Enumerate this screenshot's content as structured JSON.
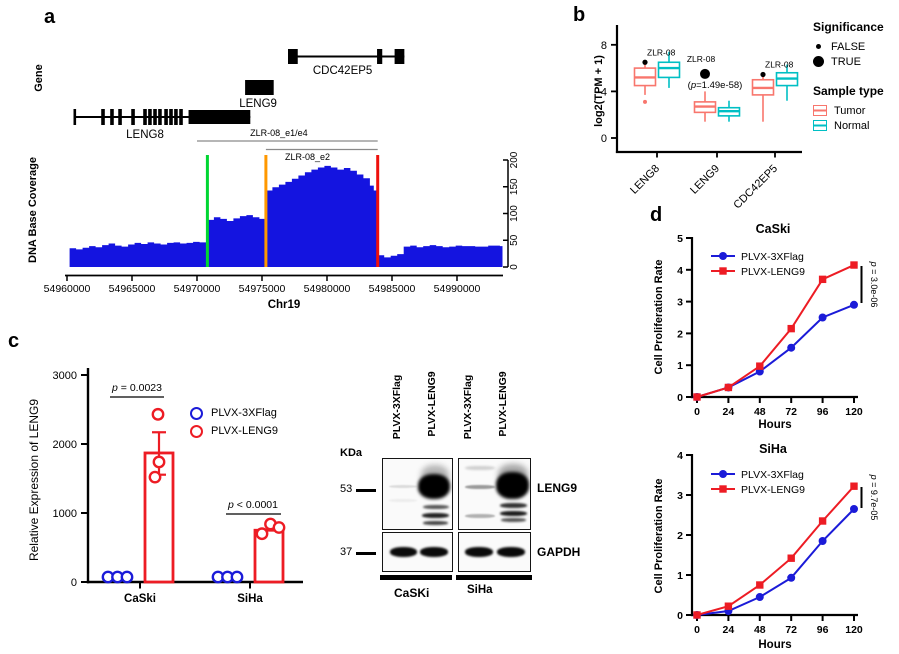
{
  "figure": {
    "panels": {
      "a": "a",
      "b": "b",
      "c": "c",
      "d": "d"
    }
  },
  "chart_data": [
    {
      "id": "coverage",
      "panel": "a",
      "type": "area",
      "xlabel": "Chr19",
      "ylabel": "DNA Base Coverage",
      "track_label": "Gene",
      "x_ticks": [
        54960000,
        54965000,
        54970000,
        54975000,
        54980000,
        54985000,
        54990000
      ],
      "y_ticks": [
        0,
        50,
        100,
        150,
        200
      ],
      "xlim": [
        54959800,
        54993500
      ],
      "ylim": [
        0,
        200
      ],
      "fill_color": "#1414e0",
      "genes": [
        {
          "name": "LENG8",
          "line": [
            54960600,
            54974100
          ],
          "start_cap": 54960600,
          "exons": [
            54962770,
            54963460,
            54964080,
            54965080,
            54966000,
            54966380,
            54966770,
            54967150,
            54967620,
            54968000,
            54968380,
            54968770
          ],
          "block": [
            54969350,
            54974100
          ],
          "label_bp": 54966000
        },
        {
          "name": "LENG9",
          "block": [
            54973700,
            54975900
          ],
          "label_bp": 54974700
        },
        {
          "name": "CDC42EP5",
          "line": [
            54977000,
            54985950
          ],
          "exon_boxes": [
            [
              54977000,
              54977750
            ],
            [
              54983850,
              54984250
            ],
            [
              54985200,
              54985950
            ]
          ],
          "label_bp": 54981200
        }
      ],
      "brackets": [
        {
          "label": "ZLR-08_e1/e4",
          "from": 54970000,
          "to": 54983900,
          "label_bp": 54976300,
          "above": true
        },
        {
          "label": "ZLR-08_e2",
          "from": 54975300,
          "to": 54983900,
          "label_bp": 54978500,
          "above": false
        }
      ],
      "vlines": [
        {
          "color": "#00d632",
          "bp": 54970800
        },
        {
          "color": "#ff9800",
          "bp": 54975300
        },
        {
          "color": "#ee100c",
          "bp": 54983900
        }
      ],
      "coverage": [
        [
          54960200,
          35
        ],
        [
          54960700,
          33
        ],
        [
          54961200,
          36
        ],
        [
          54961700,
          39
        ],
        [
          54962200,
          37
        ],
        [
          54962700,
          41
        ],
        [
          54963200,
          44
        ],
        [
          54963700,
          40
        ],
        [
          54964200,
          38
        ],
        [
          54964700,
          42
        ],
        [
          54965200,
          45
        ],
        [
          54965700,
          43
        ],
        [
          54966200,
          46
        ],
        [
          54966700,
          44
        ],
        [
          54967200,
          42
        ],
        [
          54967700,
          45
        ],
        [
          54968200,
          46
        ],
        [
          54968700,
          44
        ],
        [
          54969200,
          45
        ],
        [
          54969700,
          47
        ],
        [
          54970200,
          46
        ],
        [
          54970800,
          88
        ],
        [
          54971300,
          93
        ],
        [
          54971800,
          90
        ],
        [
          54972300,
          86
        ],
        [
          54972800,
          91
        ],
        [
          54973300,
          95
        ],
        [
          54973800,
          97
        ],
        [
          54974300,
          93
        ],
        [
          54974800,
          90
        ],
        [
          54975300,
          143
        ],
        [
          54975800,
          149
        ],
        [
          54976300,
          154
        ],
        [
          54976800,
          159
        ],
        [
          54977300,
          165
        ],
        [
          54977800,
          171
        ],
        [
          54978300,
          177
        ],
        [
          54978800,
          182
        ],
        [
          54979300,
          186
        ],
        [
          54979800,
          189
        ],
        [
          54980300,
          186
        ],
        [
          54980800,
          182
        ],
        [
          54981300,
          185
        ],
        [
          54981800,
          180
        ],
        [
          54982300,
          173
        ],
        [
          54982800,
          166
        ],
        [
          54983300,
          152
        ],
        [
          54983600,
          143
        ],
        [
          54983900,
          22
        ],
        [
          54984400,
          18
        ],
        [
          54984900,
          21
        ],
        [
          54985400,
          24
        ],
        [
          54985900,
          38
        ],
        [
          54986400,
          40
        ],
        [
          54986900,
          37
        ],
        [
          54987400,
          39
        ],
        [
          54987900,
          41
        ],
        [
          54988400,
          39
        ],
        [
          54988900,
          37
        ],
        [
          54989400,
          38
        ],
        [
          54989900,
          40
        ],
        [
          54990400,
          39
        ],
        [
          54991400,
          38
        ],
        [
          54992400,
          40
        ],
        [
          54993300,
          39
        ]
      ]
    },
    {
      "id": "expression_box",
      "panel": "b",
      "type": "box",
      "ylabel": "log2(TPM + 1)",
      "y_ticks": [
        0,
        4,
        8
      ],
      "ylim": [
        0,
        9.5
      ],
      "categories": [
        "LENG8",
        "LENG9",
        "CDC42EP5"
      ],
      "groups": [
        "Tumor",
        "Normal"
      ],
      "colors": {
        "Tumor": "#F8766D",
        "Normal": "#00BFC4"
      },
      "boxes": {
        "LENG8": {
          "Tumor": {
            "lo": 3.7,
            "q1": 4.5,
            "med": 5.2,
            "q3": 6.0,
            "hi": 6.4,
            "outliers": [
              3.1
            ]
          },
          "Normal": {
            "lo": 4.3,
            "q1": 5.2,
            "med": 6.0,
            "q3": 6.5,
            "hi": 7.4,
            "outliers": []
          }
        },
        "LENG9": {
          "Tumor": {
            "lo": 1.4,
            "q1": 2.2,
            "med": 2.7,
            "q3": 3.1,
            "hi": 4.0,
            "outliers": []
          },
          "Normal": {
            "lo": 1.4,
            "q1": 1.9,
            "med": 2.3,
            "q3": 2.6,
            "hi": 3.2,
            "outliers": []
          }
        },
        "CDC42EP5": {
          "Tumor": {
            "lo": 1.4,
            "q1": 3.7,
            "med": 4.3,
            "q3": 5.0,
            "hi": 5.6,
            "outliers": []
          },
          "Normal": {
            "lo": 3.2,
            "q1": 4.5,
            "med": 5.1,
            "q3": 5.6,
            "hi": 6.3,
            "outliers": []
          }
        }
      },
      "significance_dots": [
        {
          "category": "LENG8",
          "label": "ZLR-08",
          "value": 6.5,
          "significant": false
        },
        {
          "category": "LENG9",
          "label": "ZLR-08",
          "value": 5.5,
          "significant": true,
          "note": "(p=1.49e-58)"
        },
        {
          "category": "CDC42EP5",
          "label": "ZLR-08",
          "value": 5.45,
          "significant": false
        }
      ],
      "legend": {
        "significance_title": "Significance",
        "false_label": "FALSE",
        "true_label": "TRUE",
        "sample_title": "Sample type",
        "tumor_label": "Tumor",
        "normal_label": "Normal"
      }
    },
    {
      "id": "relative_expression",
      "panel": "c",
      "type": "bar",
      "ylabel": "Relative Expression of LENG9",
      "y_ticks": [
        0,
        1000,
        2000,
        3000
      ],
      "ylim": [
        0,
        3000
      ],
      "categories": [
        "CaSki",
        "SiHa"
      ],
      "series": [
        {
          "name": "PLVX-3XFlag",
          "color": "#1b1bd8",
          "values": [
            5,
            5
          ],
          "points": [
            [
              5,
              5,
              5
            ],
            [
              5,
              5,
              5
            ]
          ]
        },
        {
          "name": "PLVX-LENG9",
          "color": "#ed1c24",
          "values": [
            1870,
            750
          ],
          "sem": [
            {
              "top": 2170,
              "bot": 1555
            },
            null
          ],
          "points": [
            [
              2430,
              1740,
              1520
            ],
            [
              700,
              840,
              790
            ]
          ]
        }
      ],
      "p_labels": [
        {
          "text": "p = 0.0023",
          "category": "CaSki"
        },
        {
          "text": "p < 0.0001",
          "category": "SiHa"
        }
      ]
    },
    {
      "id": "proliferation_caski",
      "panel": "d",
      "type": "line",
      "title": "CaSki",
      "xlabel": "Hours",
      "ylabel": "Cell Proliferation Rate",
      "x": [
        0,
        24,
        48,
        72,
        96,
        120
      ],
      "ylim": [
        0,
        5
      ],
      "y_ticks": [
        0,
        1,
        2,
        3,
        4,
        5
      ],
      "series": [
        {
          "name": "PLVX-3XFlag",
          "color": "#1b1bd8",
          "marker": "circle",
          "values": [
            0,
            0.3,
            0.8,
            1.55,
            2.5,
            2.9
          ]
        },
        {
          "name": "PLVX-LENG9",
          "color": "#ed1c24",
          "marker": "square",
          "values": [
            0,
            0.3,
            0.97,
            2.15,
            3.7,
            4.15
          ]
        }
      ],
      "p_label": "p = 3.0e-06"
    },
    {
      "id": "proliferation_siha",
      "panel": "d",
      "type": "line",
      "title": "SiHa",
      "xlabel": "Hours",
      "ylabel": "Cell Proliferation Rate",
      "x": [
        0,
        24,
        48,
        72,
        96,
        120
      ],
      "ylim": [
        0,
        4
      ],
      "y_ticks": [
        0,
        1,
        2,
        3,
        4
      ],
      "series": [
        {
          "name": "PLVX-3XFlag",
          "color": "#1b1bd8",
          "marker": "circle",
          "values": [
            0,
            0.1,
            0.45,
            0.93,
            1.85,
            2.65
          ]
        },
        {
          "name": "PLVX-LENG9",
          "color": "#ed1c24",
          "marker": "square",
          "values": [
            0,
            0.22,
            0.75,
            1.42,
            2.35,
            3.22
          ]
        }
      ],
      "p_label": "p = 9.7e-05"
    }
  ],
  "western_blot": {
    "kda_label": "KDa",
    "markers": [
      {
        "kda": "53"
      },
      {
        "kda": "37"
      }
    ],
    "lane_labels": [
      "PLVX-3XFlag",
      "PLVX-LENG9",
      "PLVX-3XFlag",
      "PLVX-LENG9"
    ],
    "blot_labels": [
      "LENG9",
      "GAPDH"
    ],
    "group_labels": [
      "CaSKi",
      "SiHa"
    ]
  }
}
